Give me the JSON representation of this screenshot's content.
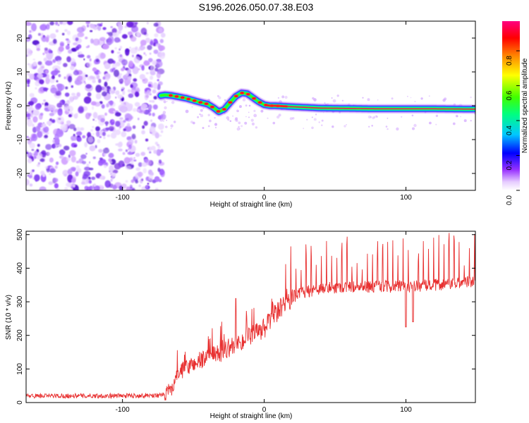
{
  "title": "S196.2026.050.07.38.E03",
  "chart_data": [
    {
      "type": "heatmap",
      "xlabel": "Height of straight line (km)",
      "ylabel": "Frequency (Hz)",
      "xlim": [
        -168,
        149
      ],
      "ylim": [
        -25,
        25
      ],
      "xticks": [
        -100,
        0,
        100
      ],
      "yticks": [
        -20,
        -10,
        0,
        10,
        20
      ],
      "noise_region_x": [
        -168,
        -73
      ],
      "signal_region_x": [
        -73,
        149
      ],
      "frequency_track": {
        "x": [
          -73,
          -70,
          -65,
          -60,
          -55,
          -50,
          -45,
          -40,
          -36,
          -32,
          -28,
          -24,
          -20,
          -16,
          -12,
          -8,
          -4,
          0,
          4,
          8,
          12,
          20,
          30,
          40,
          60,
          80,
          100,
          120,
          149
        ],
        "freq": [
          3,
          3.2,
          3,
          2.6,
          2.2,
          1.6,
          1,
          0.5,
          -0.5,
          -1.8,
          -1,
          1,
          2.8,
          3.8,
          3.6,
          2.4,
          1.2,
          0.3,
          0,
          0,
          -0.1,
          -0.3,
          -0.5,
          -0.7,
          -0.8,
          -0.9,
          -0.9,
          -0.9,
          -1
        ]
      },
      "colorbar": {
        "label": "Normalized spectral amplitude",
        "ticks": [
          "0.0",
          "0.2",
          "0.4",
          "0.6",
          "0.8"
        ],
        "range": [
          0,
          0.97
        ],
        "colors": [
          "#ffffff",
          "#cc99ff",
          "#7a00ff",
          "#0000ff",
          "#00c8ff",
          "#00ff80",
          "#40ff00",
          "#ffff00",
          "#ff8000",
          "#ff0000",
          "#ff0080"
        ]
      }
    },
    {
      "type": "line",
      "xlabel": "Height of straight line (km)",
      "ylabel": "SNR (10 * v/v)",
      "xlim": [
        -168,
        149
      ],
      "ylim": [
        0,
        510
      ],
      "xticks": [
        -100,
        0,
        100
      ],
      "yticks": [
        0,
        100,
        200,
        300,
        400,
        500
      ],
      "series_color": "#e83030",
      "series": [
        {
          "name": "SNR",
          "trend_x": [
            -168,
            -100,
            -70,
            -65,
            -60,
            -50,
            -40,
            -30,
            -20,
            -10,
            0,
            10,
            20,
            30,
            40,
            60,
            80,
            100,
            120,
            149
          ],
          "trend_y": [
            20,
            20,
            22,
            45,
            90,
            115,
            135,
            150,
            175,
            195,
            220,
            270,
            315,
            330,
            340,
            345,
            345,
            345,
            350,
            360
          ],
          "spike_period_km": 3.6,
          "spike_start_km": 15,
          "dips": [
            {
              "x": 100,
              "y": 225
            },
            {
              "x": 105,
              "y": 240
            }
          ]
        }
      ]
    }
  ]
}
